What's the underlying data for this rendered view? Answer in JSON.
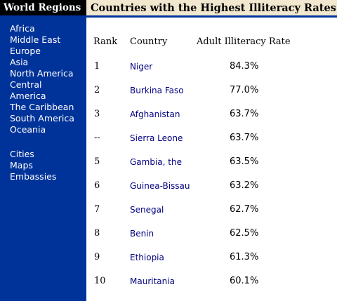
{
  "sidebar": {
    "title": "World Regions",
    "regions": [
      "Africa",
      "Middle East",
      "Europe",
      "Asia",
      "North America",
      "Central America",
      "The Caribbean",
      "South America",
      "Oceania"
    ],
    "extras": [
      "Cities",
      "Maps",
      "Embassies"
    ]
  },
  "main": {
    "title": "Countries with the Highest Illiteracy Rates",
    "columns": {
      "rank": "Rank",
      "country": "Country",
      "rate": "Adult Illiteracy Rate"
    },
    "rows": [
      {
        "rank": "1",
        "country": "Niger",
        "rate": "84.3%"
      },
      {
        "rank": "2",
        "country": "Burkina Faso",
        "rate": "77.0%"
      },
      {
        "rank": "3",
        "country": "Afghanistan",
        "rate": "63.7%"
      },
      {
        "rank": "--",
        "country": "Sierra Leone",
        "rate": "63.7%"
      },
      {
        "rank": "5",
        "country": "Gambia, the",
        "rate": "63.5%"
      },
      {
        "rank": "6",
        "country": "Guinea-Bissau",
        "rate": "63.2%"
      },
      {
        "rank": "7",
        "country": "Senegal",
        "rate": "62.7%"
      },
      {
        "rank": "8",
        "country": "Benin",
        "rate": "62.5%"
      },
      {
        "rank": "9",
        "country": "Ethiopia",
        "rate": "61.3%"
      },
      {
        "rank": "10",
        "country": "Mauritania",
        "rate": "60.1%"
      }
    ]
  },
  "colors": {
    "sidebar_bg": "#003399",
    "header_bg": "#f2e8cf",
    "link_color": "#000080"
  }
}
